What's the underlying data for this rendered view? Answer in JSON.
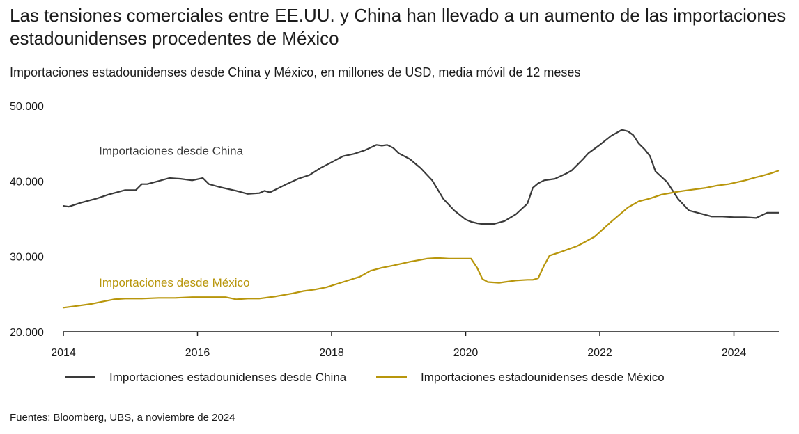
{
  "header": {
    "title": "Las tensiones comerciales entre EE.UU. y China han llevado a un aumento de las importaciones estadounidenses procedentes de México",
    "subtitle": "Importaciones estadounidenses desde China y México, en millones de USD, media móvil de 12 meses"
  },
  "footer": {
    "source": "Fuentes: Bloomberg, UBS, a noviembre de 2024"
  },
  "colors": {
    "china": "#3a3a3a",
    "mexico": "#b8960c",
    "axis": "#1a1a1a"
  },
  "chart_data": {
    "type": "line",
    "title": "Las tensiones comerciales entre EE.UU. y China han llevado a un aumento de las importaciones estadounidenses procedentes de México",
    "subtitle": "Importaciones estadounidenses desde China y México, en millones de USD, media móvil de 12 meses",
    "xlabel": "",
    "ylabel": "",
    "xlim": [
      2014,
      2024.67
    ],
    "ylim": [
      20000,
      50000
    ],
    "grid": false,
    "legend_position": "bottom",
    "x_ticks": [
      2014,
      2016,
      2018,
      2020,
      2022,
      2024
    ],
    "x_tick_labels": [
      "2014",
      "2016",
      "2018",
      "2020",
      "2022",
      "2024"
    ],
    "y_ticks": [
      20000,
      30000,
      40000,
      50000
    ],
    "y_tick_labels": [
      "20.000",
      "30.000",
      "40.000",
      "50.000"
    ],
    "annotations": [
      {
        "text": "Importaciones desde China",
        "series": "china",
        "x": 2014.5,
        "y": 43500
      },
      {
        "text": "Importaciones desde México",
        "series": "mexico",
        "x": 2014.5,
        "y": 26000
      }
    ],
    "series": [
      {
        "name": "Importaciones estadounidenses desde China",
        "key": "china",
        "x": [
          2014.0,
          2014.08,
          2014.25,
          2014.5,
          2014.67,
          2014.92,
          2015.08,
          2015.17,
          2015.25,
          2015.42,
          2015.58,
          2015.75,
          2015.92,
          2016.08,
          2016.17,
          2016.33,
          2016.58,
          2016.75,
          2016.92,
          2017.0,
          2017.08,
          2017.33,
          2017.5,
          2017.67,
          2017.83,
          2018.0,
          2018.17,
          2018.33,
          2018.5,
          2018.67,
          2018.75,
          2018.83,
          2018.92,
          2019.0,
          2019.17,
          2019.33,
          2019.5,
          2019.67,
          2019.83,
          2020.0,
          2020.08,
          2020.17,
          2020.25,
          2020.42,
          2020.58,
          2020.75,
          2020.92,
          2021.0,
          2021.08,
          2021.17,
          2021.33,
          2021.5,
          2021.58,
          2021.75,
          2021.83,
          2022.0,
          2022.17,
          2022.33,
          2022.42,
          2022.5,
          2022.58,
          2022.67,
          2022.75,
          2022.83,
          2023.0,
          2023.17,
          2023.33,
          2023.5,
          2023.67,
          2023.83,
          2024.0,
          2024.17,
          2024.33,
          2024.5,
          2024.58,
          2024.67
        ],
        "values": [
          36700,
          36600,
          37100,
          37700,
          38200,
          38800,
          38800,
          39600,
          39600,
          40000,
          40400,
          40300,
          40100,
          40400,
          39600,
          39200,
          38700,
          38300,
          38400,
          38700,
          38500,
          39600,
          40300,
          40800,
          41700,
          42500,
          43300,
          43600,
          44100,
          44800,
          44700,
          44800,
          44400,
          43700,
          42900,
          41700,
          40100,
          37600,
          36100,
          34900,
          34600,
          34400,
          34300,
          34300,
          34700,
          35600,
          37000,
          39100,
          39700,
          40100,
          40300,
          41000,
          41400,
          42900,
          43700,
          44800,
          46000,
          46800,
          46600,
          46100,
          45000,
          44200,
          43300,
          41300,
          39900,
          37600,
          36100,
          35700,
          35300,
          35300,
          35200,
          35200,
          35100,
          35800,
          35800,
          35800
        ]
      },
      {
        "name": "Importaciones estadounidenses desde México",
        "key": "mexico",
        "x": [
          2014.0,
          2014.17,
          2014.42,
          2014.58,
          2014.75,
          2014.92,
          2015.17,
          2015.42,
          2015.67,
          2015.92,
          2016.17,
          2016.42,
          2016.58,
          2016.75,
          2016.92,
          2017.17,
          2017.42,
          2017.58,
          2017.75,
          2017.92,
          2018.17,
          2018.42,
          2018.58,
          2018.75,
          2018.92,
          2019.17,
          2019.42,
          2019.58,
          2019.75,
          2019.92,
          2020.08,
          2020.17,
          2020.25,
          2020.33,
          2020.5,
          2020.58,
          2020.75,
          2020.92,
          2021.0,
          2021.08,
          2021.17,
          2021.25,
          2021.42,
          2021.67,
          2021.92,
          2022.17,
          2022.42,
          2022.58,
          2022.75,
          2022.92,
          2023.17,
          2023.33,
          2023.58,
          2023.75,
          2023.92,
          2024.17,
          2024.33,
          2024.42,
          2024.58,
          2024.67
        ],
        "values": [
          23200,
          23400,
          23700,
          24000,
          24300,
          24400,
          24400,
          24500,
          24500,
          24600,
          24600,
          24600,
          24300,
          24400,
          24400,
          24700,
          25100,
          25400,
          25600,
          25900,
          26600,
          27300,
          28100,
          28500,
          28800,
          29300,
          29700,
          29800,
          29700,
          29700,
          29700,
          28500,
          27000,
          26600,
          26500,
          26600,
          26800,
          26900,
          26900,
          27100,
          28800,
          30100,
          30600,
          31400,
          32600,
          34600,
          36500,
          37300,
          37700,
          38200,
          38600,
          38800,
          39100,
          39400,
          39600,
          40100,
          40500,
          40700,
          41100,
          41400
        ]
      }
    ]
  }
}
